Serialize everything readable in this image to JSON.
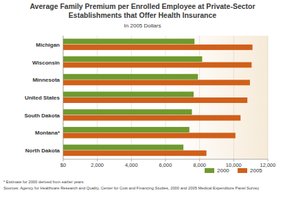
{
  "chart_data": {
    "type": "bar",
    "orientation": "horizontal",
    "title": "Average Family Premium per Enrolled Employee at Private-Sector\nEstablishments that Offer Health Insurance",
    "subtitle": "In 2005 Dollars",
    "categories": [
      "Michigan",
      "Wisconsin",
      "Minnesota",
      "United States",
      "South Dakota",
      "Montana*",
      "North Dakota"
    ],
    "series": [
      {
        "name": "2000",
        "color": "#6f9a2f",
        "values": [
          7700,
          8150,
          7900,
          7650,
          7550,
          7400,
          7050
        ]
      },
      {
        "name": "2005",
        "color": "#d0601a",
        "values": [
          11100,
          11050,
          10950,
          10800,
          10400,
          10100,
          8400
        ]
      }
    ],
    "xlim": [
      0,
      12000
    ],
    "xticks": [
      {
        "value": 0,
        "label": "$0"
      },
      {
        "value": 2000,
        "label": "2,000"
      },
      {
        "value": 4000,
        "label": "4,000"
      },
      {
        "value": 6000,
        "label": "6,000"
      },
      {
        "value": 8000,
        "label": "8,000"
      },
      {
        "value": 10000,
        "label": "10,000"
      },
      {
        "value": 12000,
        "label": "12,000"
      }
    ],
    "grid": true,
    "legend": "bottom-right",
    "notes": [
      "* Estimate for 2000 derived from earlier years",
      "Sources:  Agency for Healthcare Research and Quality, Center for Cost and Financing Studies, 2000 and 2005 Medical Expenditure Panel Survey"
    ]
  }
}
